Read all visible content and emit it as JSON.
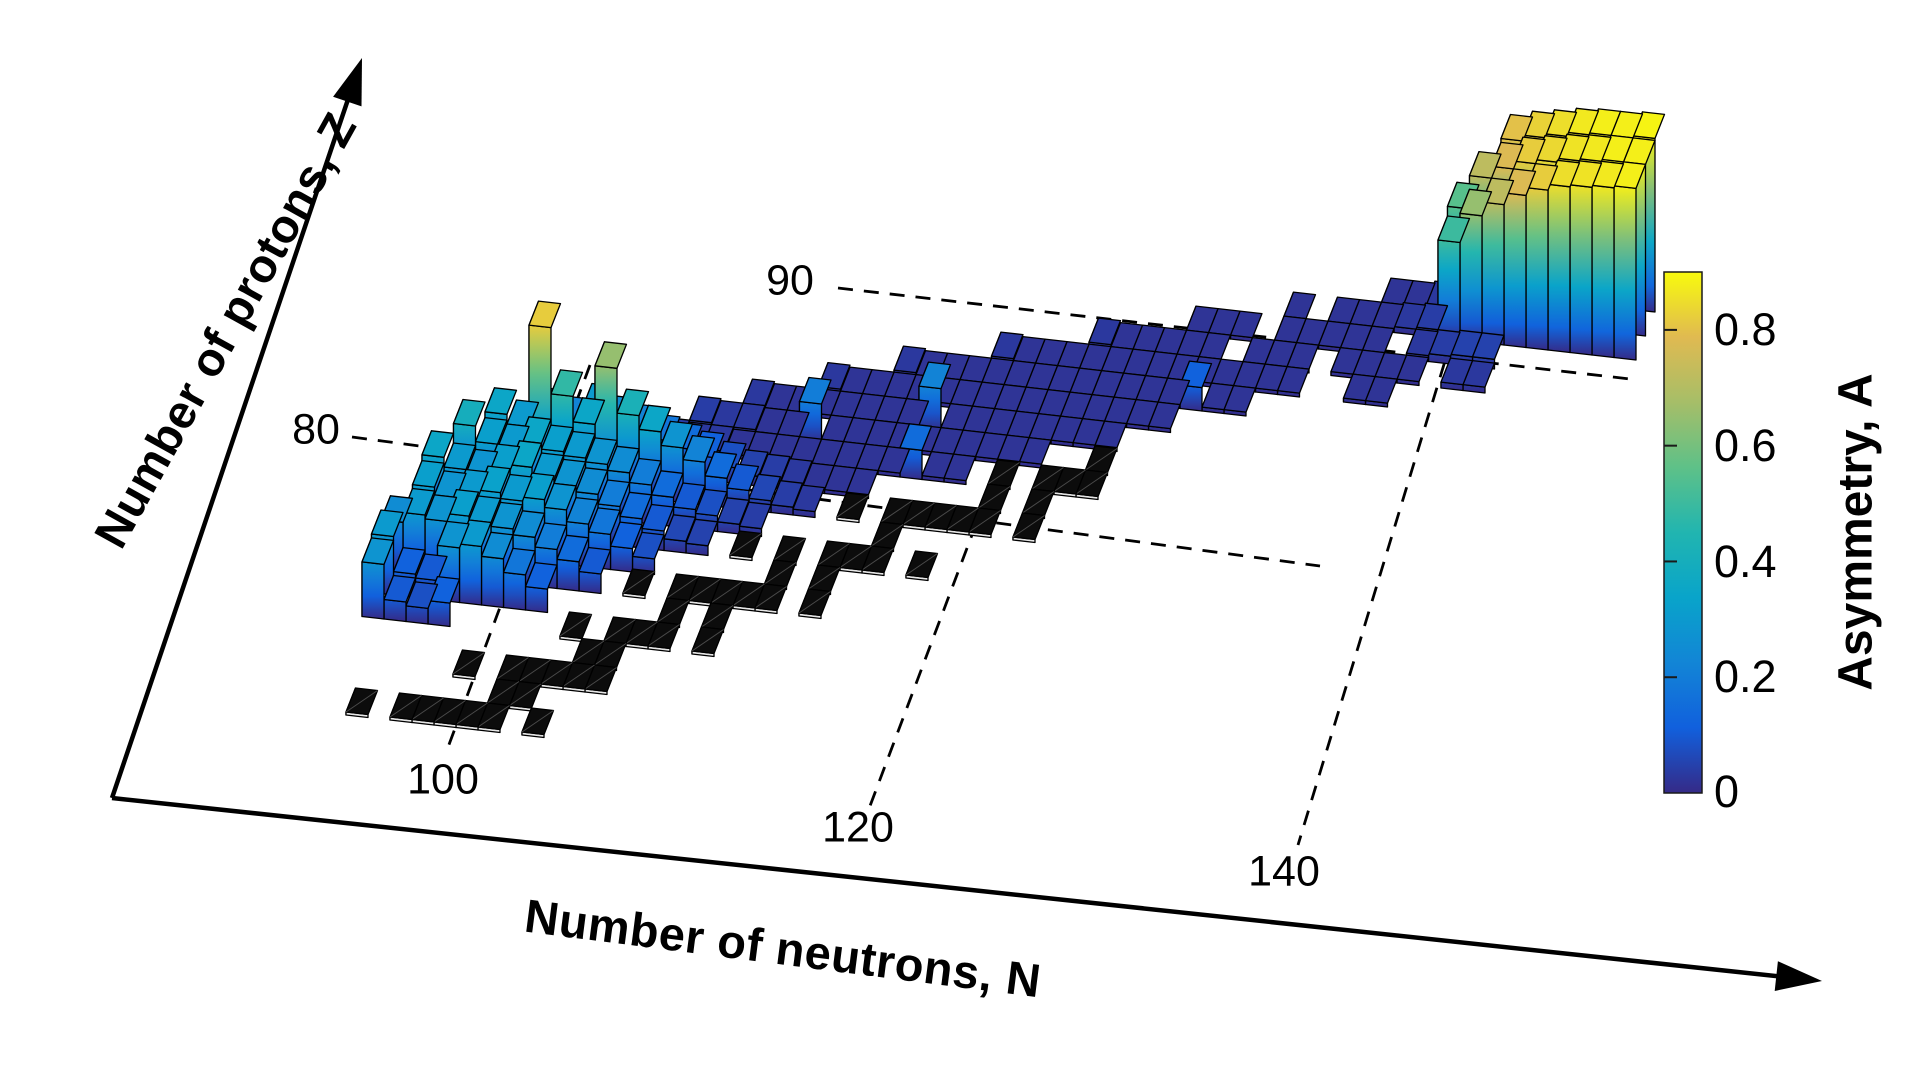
{
  "figure": {
    "xlabel": "Number of neutrons, N",
    "ylabel": "Number of protons, Z",
    "colorbar_label": "Asymmetry, A",
    "x_tick_labels": [
      "100",
      "120",
      "140"
    ],
    "y_tick_labels": [
      "80",
      "90"
    ],
    "colorbar_tick_labels": [
      "0.8",
      "0.6",
      "0.4",
      "0.2",
      "0"
    ],
    "background_color": "#ffffff",
    "stable_tile_color": "#0c0c0c",
    "edge_color": "#000000"
  },
  "chart_data": {
    "type": "bar",
    "subtype": "3d-bar-chart-of-nuclides",
    "title": "",
    "xlabel": "Number of neutrons, N",
    "ylabel": "Number of protons, Z",
    "zlabel": "Asymmetry, A",
    "x_ticks": [
      100,
      120,
      140
    ],
    "y_ticks": [
      80,
      90
    ],
    "colorbar_ticks": [
      0,
      0.2,
      0.4,
      0.6,
      0.8
    ],
    "x_range": [
      95,
      150
    ],
    "y_range": [
      69,
      93
    ],
    "value_range": [
      0,
      0.9
    ],
    "grid": "dashed-guide-lines",
    "legend_position": "colorbar-right",
    "colormap": "parula",
    "parula_stops": [
      [
        0.0,
        "#352a87"
      ],
      [
        0.125,
        "#1160dd"
      ],
      [
        0.25,
        "#1285d6"
      ],
      [
        0.375,
        "#09a4ca"
      ],
      [
        0.5,
        "#21b5b0"
      ],
      [
        0.625,
        "#5ec188"
      ],
      [
        0.75,
        "#a6be68"
      ],
      [
        0.875,
        "#e0ba51"
      ],
      [
        1.0,
        "#f8fa0d"
      ]
    ],
    "asymmetry_rows": [
      {
        "z": 74,
        "n0": 97,
        "values": [
          0.28,
          0.1,
          0.08,
          0.12
        ]
      },
      {
        "z": 75,
        "n0": 97,
        "values": [
          0.3,
          0.12,
          0.1,
          0.28,
          0.3,
          0.25,
          0.18,
          0.12
        ]
      },
      {
        "z": 76,
        "n0": 97,
        "values": [
          0.25,
          0.3,
          0.28,
          0.32,
          0.3,
          0.28,
          0.25,
          0.2,
          0.15,
          0.1
        ]
      },
      {
        "z": 77,
        "n0": 98,
        "values": [
          0.32,
          0.28,
          0.3,
          0.33,
          0.3,
          0.32,
          0.28,
          0.22,
          0.18,
          0.12,
          0.08
        ]
      },
      {
        "z": 78,
        "n0": 98,
        "values": [
          0.35,
          0.3,
          0.28,
          0.32,
          0.35,
          0.3,
          0.28,
          0.25,
          0.2,
          0.15,
          0.1,
          0.06,
          0.05
        ]
      },
      {
        "z": 79,
        "n0": 99,
        "values": [
          0.4,
          0.32,
          0.3,
          0.35,
          0.32,
          0.3,
          0.28,
          0.25,
          0.2,
          0.15,
          0.1,
          0.08,
          0.05,
          0.04
        ]
      },
      {
        "z": 80,
        "n0": 100,
        "values": [
          0.35,
          0.3,
          0.82,
          0.48,
          0.35,
          0.65,
          0.42,
          0.35,
          0.28,
          0.22,
          0.15,
          0.1,
          0.06,
          0.04,
          0.03
        ]
      },
      {
        "z": 81,
        "n0": 102,
        "values": [
          0.25,
          0.22,
          0.3,
          0.25,
          0.22,
          0.18,
          0.15,
          0.12,
          0.08,
          0.05,
          0.04,
          0.03,
          0.02,
          0.02,
          0.02
        ]
      },
      {
        "z": 82,
        "n0": 106,
        "values": [
          0.05,
          0.04,
          0.03,
          0.03,
          0.02,
          0.02,
          0.02,
          0.02,
          0.02,
          0.02,
          0.02,
          0.02,
          0.15,
          0.02,
          0.02
        ]
      },
      {
        "z": 83,
        "n0": 108,
        "values": [
          0.04,
          0.03,
          0.03,
          0.02,
          0.02,
          0.2,
          0.02,
          0.02,
          0.02,
          0.02,
          0.02,
          0.02,
          0.02,
          0.02,
          0.02,
          0.02
        ]
      },
      {
        "z": 84,
        "n0": 110,
        "values": [
          0.03,
          0.02,
          0.02,
          0.02,
          0.02,
          0.02,
          0.02,
          0.02,
          0.22,
          0.02,
          0.02,
          0.02,
          0.02,
          0.02,
          0.02,
          0.02,
          0.02
        ]
      },
      {
        "z": 85,
        "n0": 113,
        "values": [
          0.03,
          0.02,
          0.02,
          0.02,
          0.02,
          0.02,
          0.02,
          0.02,
          0.02,
          0.02,
          0.02,
          0.02,
          0.02,
          0.02,
          0.02,
          0.02
        ]
      },
      {
        "z": 86,
        "n0": 116,
        "values": [
          0.03,
          0.02,
          0.02,
          0.02,
          0.02,
          0.02,
          0.02,
          0.02,
          0.02,
          0.02,
          0.02,
          0.02,
          0.02,
          0.12,
          0.02,
          0.02
        ]
      },
      {
        "z": 87,
        "n0": 120,
        "values": [
          0.03,
          0.02,
          0.02,
          0.02,
          0.02,
          0.02,
          0.02,
          0.02,
          0.02,
          0.02,
          0.02,
          0.02,
          0.02,
          0.02,
          null,
          null,
          0.02,
          0.02
        ]
      },
      {
        "z": 88,
        "n0": 124,
        "values": [
          0.03,
          0.02,
          0.02,
          0.02,
          0.02,
          0.02,
          null,
          0.02,
          0.02,
          0.02,
          null,
          0.02,
          0.02,
          0.02,
          0.02,
          null,
          0.03,
          0.03
        ]
      },
      {
        "z": 89,
        "n0": 128,
        "values": [
          0.02,
          0.02,
          0.02,
          null,
          0.02,
          0.02,
          0.02,
          0.02,
          0.02,
          null,
          0.03,
          0.04,
          0.05,
          0.05
        ]
      },
      {
        "z": 90,
        "n0": 132,
        "values": [
          0.02,
          null,
          0.02,
          0.02,
          0.02,
          0.03,
          0.04,
          0.5,
          0.65,
          0.72,
          0.78,
          0.82,
          0.85,
          0.86,
          0.87,
          0.88
        ]
      },
      {
        "z": 91,
        "n0": 136,
        "values": [
          0.02,
          0.02,
          0.03,
          0.55,
          0.72,
          0.78,
          0.82,
          0.84,
          0.86,
          0.87,
          0.88,
          0.88
        ]
      },
      {
        "z": 92,
        "n0": 141,
        "values": [
          0.8,
          0.83,
          0.85,
          0.87,
          0.88,
          0.88,
          0.89
        ]
      }
    ],
    "stable_nuclides": [
      {
        "z": 70,
        "n": [
          98,
          100,
          101,
          102,
          103,
          104,
          106
        ]
      },
      {
        "z": 71,
        "n": [
          104,
          105
        ]
      },
      {
        "z": 72,
        "n": [
          102,
          104,
          105,
          106,
          107,
          108
        ]
      },
      {
        "z": 73,
        "n": [
          107,
          108
        ]
      },
      {
        "z": 74,
        "n": [
          106,
          108,
          109,
          110,
          112
        ]
      },
      {
        "z": 75,
        "n": [
          110,
          112
        ]
      },
      {
        "z": 76,
        "n": [
          108,
          110,
          111,
          112,
          113,
          114,
          116
        ]
      },
      {
        "z": 77,
        "n": [
          114,
          116
        ]
      },
      {
        "z": 78,
        "n": [
          112,
          114,
          116,
          117,
          118,
          120
        ]
      },
      {
        "z": 79,
        "n": [
          118
        ]
      },
      {
        "z": 80,
        "n": [
          116,
          118,
          119,
          120,
          121,
          122,
          124
        ]
      },
      {
        "z": 81,
        "n": [
          122,
          124
        ]
      },
      {
        "z": 82,
        "n": [
          122,
          124,
          125,
          126
        ]
      },
      {
        "z": 83,
        "n": [
          126
        ]
      }
    ]
  }
}
